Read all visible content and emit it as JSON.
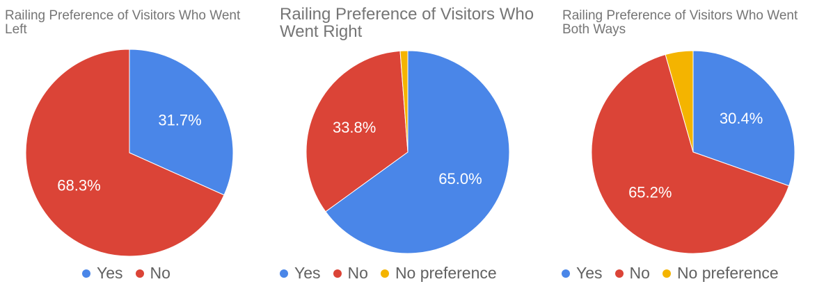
{
  "colors": {
    "yes": "#4a86e8",
    "no": "#db4437",
    "no_preference": "#f4b400"
  },
  "chart_data": [
    {
      "type": "pie",
      "title": "Railing Preference of Visitors Who Went Left",
      "labels": [
        "Yes",
        "No"
      ],
      "values": [
        31.7,
        68.3
      ],
      "data_labels": [
        "31.7%",
        "68.3%"
      ],
      "legend": [
        "Yes",
        "No"
      ],
      "legend_position": "bottom"
    },
    {
      "type": "pie",
      "title": "Railing Preference of Visitors Who Went Right",
      "labels": [
        "Yes",
        "No",
        "No preference"
      ],
      "values": [
        65.0,
        33.8,
        1.2
      ],
      "data_labels": [
        "65.0%",
        "33.8%",
        ""
      ],
      "legend": [
        "Yes",
        "No",
        "No preference"
      ],
      "legend_position": "bottom"
    },
    {
      "type": "pie",
      "title": "Railing Preference of Visitors Who Went Both Ways",
      "labels": [
        "Yes",
        "No",
        "No preference"
      ],
      "values": [
        30.4,
        65.2,
        4.4
      ],
      "data_labels": [
        "30.4%",
        "65.2%",
        ""
      ],
      "legend": [
        "Yes",
        "No",
        "No preference"
      ],
      "legend_position": "bottom"
    }
  ]
}
